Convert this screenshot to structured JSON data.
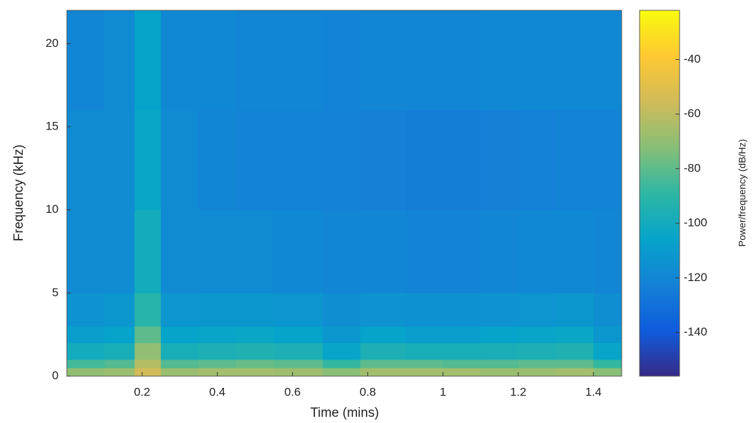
{
  "chart_data": {
    "type": "spectrogram",
    "xlabel": "Time (mins)",
    "ylabel": "Frequency (kHz)",
    "colorbar_label": "Power/frequency (dB/Hz)",
    "xlim": [
      0,
      1.475
    ],
    "ylim": [
      0,
      22
    ],
    "xticks": [
      0.2,
      0.4,
      0.6,
      0.8,
      1,
      1.2,
      1.4
    ],
    "yticks": [
      0,
      5,
      10,
      15,
      20
    ],
    "clim": [
      -156,
      -22
    ],
    "cticks": [
      -40,
      -60,
      -80,
      -100,
      -120,
      -140
    ],
    "colormap": [
      "#352a87",
      "#0f5cdd",
      "#1481d6",
      "#06a4ca",
      "#2eb7a4",
      "#87bf77",
      "#d1bb59",
      "#fec832",
      "#f9fb0e"
    ],
    "x_bins": [
      0,
      0.1,
      0.18,
      0.25,
      0.35,
      0.45,
      0.55,
      0.68,
      0.78,
      0.9,
      1.0,
      1.1,
      1.2,
      1.3,
      1.4,
      1.475
    ],
    "y_bins": [
      0,
      0.5,
      1,
      2,
      3,
      5,
      10,
      16,
      22
    ],
    "values": [
      [
        -70,
        -68,
        -55,
        -68,
        -66,
        -66,
        -67,
        -72,
        -66,
        -66,
        -66,
        -68,
        -68,
        -66,
        -72
      ],
      [
        -85,
        -82,
        -62,
        -82,
        -80,
        -78,
        -80,
        -88,
        -80,
        -80,
        -82,
        -82,
        -80,
        -80,
        -88
      ],
      [
        -100,
        -98,
        -70,
        -98,
        -96,
        -95,
        -96,
        -105,
        -96,
        -98,
        -98,
        -97,
        -96,
        -95,
        -105
      ],
      [
        -108,
        -106,
        -80,
        -106,
        -105,
        -104,
        -106,
        -112,
        -106,
        -108,
        -108,
        -106,
        -105,
        -104,
        -112
      ],
      [
        -114,
        -112,
        -92,
        -113,
        -112,
        -112,
        -113,
        -116,
        -114,
        -115,
        -115,
        -114,
        -113,
        -112,
        -116
      ],
      [
        -118,
        -117,
        -100,
        -118,
        -118,
        -118,
        -119,
        -120,
        -120,
        -121,
        -121,
        -120,
        -119,
        -119,
        -120
      ],
      [
        -118,
        -117,
        -104,
        -118,
        -120,
        -121,
        -121,
        -122,
        -123,
        -124,
        -124,
        -123,
        -122,
        -121,
        -121
      ],
      [
        -120,
        -118,
        -106,
        -119,
        -119,
        -120,
        -120,
        -121,
        -120,
        -120,
        -120,
        -119,
        -119,
        -119,
        -119
      ]
    ]
  }
}
